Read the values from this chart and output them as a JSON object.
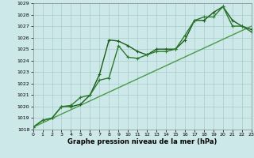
{
  "xlabel": "Graphe pression niveau de la mer (hPa)",
  "bg_color": "#cce8e8",
  "grid_color": "#aacccc",
  "line1_color": "#1a5c1a",
  "line2_color": "#2d7a2d",
  "line3_color": "#4a9a4a",
  "ylim": [
    1018,
    1029
  ],
  "xlim": [
    0,
    23
  ],
  "yticks": [
    1018,
    1019,
    1020,
    1021,
    1022,
    1023,
    1024,
    1025,
    1026,
    1027,
    1028,
    1029
  ],
  "xticks": [
    0,
    1,
    2,
    3,
    4,
    5,
    6,
    7,
    8,
    9,
    10,
    11,
    12,
    13,
    14,
    15,
    16,
    17,
    18,
    19,
    20,
    21,
    22,
    23
  ],
  "line1_x": [
    0,
    1,
    2,
    3,
    4,
    5,
    6,
    7,
    8,
    9,
    10,
    11,
    12,
    13,
    14,
    15,
    16,
    17,
    18,
    19,
    20,
    21,
    22,
    23
  ],
  "line1_y": [
    1018.2,
    1018.8,
    1019.0,
    1020.0,
    1020.0,
    1020.2,
    1021.0,
    1022.8,
    1025.8,
    1025.7,
    1025.3,
    1024.8,
    1024.5,
    1025.0,
    1025.0,
    1025.0,
    1025.8,
    1027.5,
    1027.5,
    1028.2,
    1028.7,
    1027.5,
    1027.0,
    1026.7
  ],
  "line2_x": [
    0,
    1,
    2,
    3,
    4,
    5,
    6,
    7,
    8,
    9,
    10,
    11,
    12,
    13,
    14,
    15,
    16,
    17,
    18,
    19,
    20,
    21,
    22,
    23
  ],
  "line2_y": [
    1018.2,
    1018.8,
    1019.0,
    1020.0,
    1020.1,
    1020.8,
    1021.0,
    1022.3,
    1022.5,
    1025.3,
    1024.3,
    1024.2,
    1024.5,
    1024.8,
    1024.8,
    1025.0,
    1026.2,
    1027.5,
    1027.8,
    1027.8,
    1028.7,
    1027.0,
    1027.0,
    1026.5
  ],
  "line3_x": [
    0,
    23
  ],
  "line3_y": [
    1018.2,
    1027.0
  ],
  "marker": "+",
  "markersize": 3.5,
  "linewidth": 1.0
}
